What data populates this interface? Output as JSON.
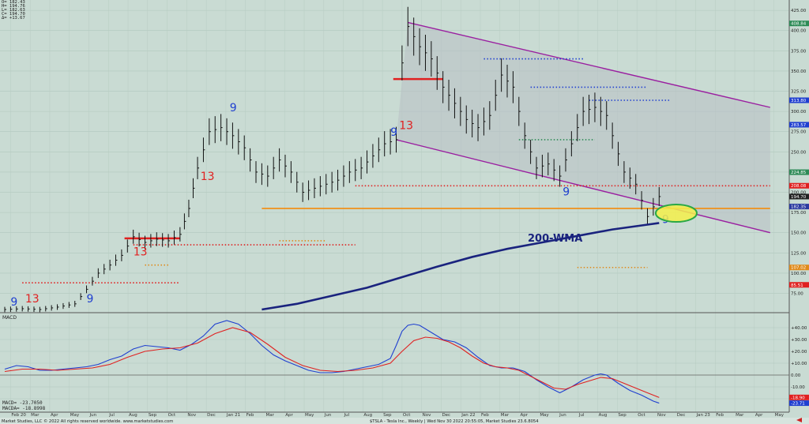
{
  "header": {
    "readout": [
      "O= 182.43",
      "H= 194.76",
      "L= 182.63",
      "C= 194.70",
      "Δ= +13.67"
    ]
  },
  "footer": {
    "left": "Market Studies, LLC © 2022 All rights reserved worldwide. www.marketstudies.com",
    "right": "$TSLA - Tesla Inc., Weekly | Wed Nov 30 2022 20:55:05, Market Studies 23.6.8054"
  },
  "annotation": {
    "wma_label": "200-WMA"
  },
  "chart_data": [
    {
      "type": "line",
      "panel": "price",
      "series_note": "weekly price bars, approximated by close",
      "ylim": [
        55,
        430
      ],
      "yticks": [
        75,
        100,
        125,
        150,
        175,
        200,
        225,
        250,
        275,
        300,
        325,
        350,
        375,
        400,
        425
      ],
      "right_labels": [
        {
          "text": "408.84",
          "value": 408.84,
          "color": "#2e8b57"
        },
        {
          "text": "313.80",
          "value": 313.8,
          "color": "#1f3fd0"
        },
        {
          "text": "283.57",
          "value": 283.57,
          "color": "#1f3fd0"
        },
        {
          "text": "224.85",
          "value": 224.85,
          "color": "#2e8b57"
        },
        {
          "text": "208.08",
          "value": 208.08,
          "color": "#e02020"
        },
        {
          "text": "194.70",
          "value": 194.7,
          "color": "#222222"
        },
        {
          "text": "182.35",
          "value": 182.35,
          "color": "#2a3aa0"
        },
        {
          "text": "107.02",
          "value": 107.02,
          "color": "#e08a1a"
        },
        {
          "text": "85.51",
          "value": 85.51,
          "color": "#e02020"
        }
      ],
      "x_labels": [
        "Feb 20",
        "Mar",
        "Apr",
        "May",
        "Jun",
        "Jul",
        "Aug",
        "Sep",
        "Oct",
        "Nov",
        "Dec",
        "Jan 21",
        "Feb",
        "Mar",
        "Apr",
        "May",
        "Jun",
        "Jul",
        "Aug",
        "Sep",
        "Oct",
        "Nov",
        "Dec",
        "Jan 22",
        "Feb",
        "Mar",
        "Apr",
        "May",
        "Jun",
        "Jul",
        "Aug",
        "Sep",
        "Oct",
        "Nov",
        "Dec",
        "Jan 23",
        "Feb",
        "Mar",
        "Apr",
        "May"
      ],
      "price": [
        {
          "t": 0,
          "v": 55
        },
        {
          "t": 3,
          "v": 56
        },
        {
          "t": 6,
          "v": 55
        },
        {
          "t": 9,
          "v": 58
        },
        {
          "t": 12,
          "v": 62
        },
        {
          "t": 14,
          "v": 80
        },
        {
          "t": 16,
          "v": 100
        },
        {
          "t": 18,
          "v": 110
        },
        {
          "t": 20,
          "v": 122
        },
        {
          "t": 22,
          "v": 145
        },
        {
          "t": 24,
          "v": 138
        },
        {
          "t": 26,
          "v": 142
        },
        {
          "t": 28,
          "v": 140
        },
        {
          "t": 30,
          "v": 148
        },
        {
          "t": 31.5,
          "v": 180
        },
        {
          "t": 33,
          "v": 230
        },
        {
          "t": 35,
          "v": 275
        },
        {
          "t": 37,
          "v": 280
        },
        {
          "t": 39,
          "v": 270
        },
        {
          "t": 41,
          "v": 255
        },
        {
          "t": 43,
          "v": 225
        },
        {
          "t": 45,
          "v": 220
        },
        {
          "t": 47,
          "v": 240
        },
        {
          "t": 49,
          "v": 225
        },
        {
          "t": 51,
          "v": 200
        },
        {
          "t": 53,
          "v": 205
        },
        {
          "t": 55,
          "v": 210
        },
        {
          "t": 57,
          "v": 215
        },
        {
          "t": 59,
          "v": 225
        },
        {
          "t": 61,
          "v": 230
        },
        {
          "t": 63,
          "v": 245
        },
        {
          "t": 65,
          "v": 260
        },
        {
          "t": 67,
          "v": 265
        },
        {
          "t": 68,
          "v": 360
        },
        {
          "t": 69,
          "v": 405
        },
        {
          "t": 71,
          "v": 380
        },
        {
          "t": 73,
          "v": 365
        },
        {
          "t": 75,
          "v": 330
        },
        {
          "t": 77,
          "v": 310
        },
        {
          "t": 79,
          "v": 290
        },
        {
          "t": 81,
          "v": 280
        },
        {
          "t": 83,
          "v": 295
        },
        {
          "t": 85,
          "v": 345
        },
        {
          "t": 87,
          "v": 330
        },
        {
          "t": 89,
          "v": 270
        },
        {
          "t": 91,
          "v": 230
        },
        {
          "t": 93,
          "v": 235
        },
        {
          "t": 95,
          "v": 220
        },
        {
          "t": 97,
          "v": 260
        },
        {
          "t": 99,
          "v": 300
        },
        {
          "t": 101,
          "v": 305
        },
        {
          "t": 103,
          "v": 295
        },
        {
          "t": 104,
          "v": 270
        },
        {
          "t": 106,
          "v": 225
        },
        {
          "t": 108,
          "v": 210
        },
        {
          "t": 110,
          "v": 170
        },
        {
          "t": 111,
          "v": 182
        },
        {
          "t": 112,
          "v": 194.7
        }
      ],
      "wma_200": [
        {
          "t": 44,
          "v": 55
        },
        {
          "t": 50,
          "v": 62
        },
        {
          "t": 56,
          "v": 72
        },
        {
          "t": 62,
          "v": 82
        },
        {
          "t": 68,
          "v": 95
        },
        {
          "t": 74,
          "v": 108
        },
        {
          "t": 80,
          "v": 120
        },
        {
          "t": 86,
          "v": 130
        },
        {
          "t": 92,
          "v": 138
        },
        {
          "t": 98,
          "v": 146
        },
        {
          "t": 104,
          "v": 154
        },
        {
          "t": 110,
          "v": 160
        },
        {
          "t": 112,
          "v": 162
        }
      ],
      "support_line": {
        "value": 180,
        "from": 44,
        "to": 131
      },
      "channel": {
        "upper": [
          {
            "t": 69,
            "v": 410
          },
          {
            "t": 131,
            "v": 305
          }
        ],
        "lower": [
          {
            "t": 67,
            "v": 265
          },
          {
            "t": 131,
            "v": 150
          }
        ]
      },
      "td_counts": [
        {
          "t": 1,
          "v": 60,
          "text": "9",
          "color": "#1f3fd0"
        },
        {
          "t": 3.5,
          "v": 64,
          "text": "13",
          "color": "#e02020"
        },
        {
          "t": 14,
          "v": 64,
          "text": "9",
          "color": "#1f3fd0"
        },
        {
          "t": 22,
          "v": 122,
          "text": "13",
          "color": "#e02020"
        },
        {
          "t": 33.5,
          "v": 215,
          "text": "13",
          "color": "#e02020"
        },
        {
          "t": 38.5,
          "v": 300,
          "text": "9",
          "color": "#1f3fd0"
        },
        {
          "t": 66,
          "v": 270,
          "text": "9",
          "color": "#1f3fd0"
        },
        {
          "t": 67.5,
          "v": 278,
          "text": "13",
          "color": "#e02020"
        },
        {
          "t": 95.5,
          "v": 196,
          "text": "9",
          "color": "#1f3fd0"
        },
        {
          "t": 112.5,
          "v": 162,
          "text": "9",
          "color": "#1f3fd0"
        }
      ]
    },
    {
      "type": "line",
      "panel": "macd",
      "title": "MACD",
      "ylim": [
        -30,
        50
      ],
      "yticks": [
        40,
        30,
        20,
        10,
        0,
        -10,
        -20
      ],
      "readout": [
        "MACD= -23.7050",
        "MACDA= -18.8998"
      ],
      "right_labels": [
        {
          "text": "-18.90",
          "value": -18.9,
          "color": "#e02020"
        },
        {
          "text": "-23.71",
          "value": -23.71,
          "color": "#1f3fd0"
        }
      ],
      "series": [
        {
          "name": "MACD",
          "color": "#1f3fd0",
          "values": [
            {
              "t": 0,
              "v": 5
            },
            {
              "t": 2,
              "v": 8
            },
            {
              "t": 4,
              "v": 7
            },
            {
              "t": 6,
              "v": 4
            },
            {
              "t": 8,
              "v": 4
            },
            {
              "t": 10,
              "v": 5
            },
            {
              "t": 12,
              "v": 6
            },
            {
              "t": 14,
              "v": 7
            },
            {
              "t": 16,
              "v": 9
            },
            {
              "t": 18,
              "v": 13
            },
            {
              "t": 20,
              "v": 16
            },
            {
              "t": 22,
              "v": 22
            },
            {
              "t": 24,
              "v": 25
            },
            {
              "t": 26,
              "v": 24
            },
            {
              "t": 28,
              "v": 23
            },
            {
              "t": 30,
              "v": 21
            },
            {
              "t": 32,
              "v": 26
            },
            {
              "t": 34,
              "v": 33
            },
            {
              "t": 36,
              "v": 43
            },
            {
              "t": 38,
              "v": 46
            },
            {
              "t": 40,
              "v": 43
            },
            {
              "t": 42,
              "v": 35
            },
            {
              "t": 44,
              "v": 25
            },
            {
              "t": 46,
              "v": 17
            },
            {
              "t": 48,
              "v": 12
            },
            {
              "t": 50,
              "v": 8
            },
            {
              "t": 52,
              "v": 4
            },
            {
              "t": 54,
              "v": 2
            },
            {
              "t": 56,
              "v": 2
            },
            {
              "t": 58,
              "v": 3
            },
            {
              "t": 60,
              "v": 5
            },
            {
              "t": 62,
              "v": 7
            },
            {
              "t": 64,
              "v": 9
            },
            {
              "t": 66,
              "v": 14
            },
            {
              "t": 67,
              "v": 25
            },
            {
              "t": 68,
              "v": 37
            },
            {
              "t": 69,
              "v": 42
            },
            {
              "t": 70,
              "v": 43
            },
            {
              "t": 71,
              "v": 42
            },
            {
              "t": 73,
              "v": 36
            },
            {
              "t": 75,
              "v": 30
            },
            {
              "t": 77,
              "v": 28
            },
            {
              "t": 79,
              "v": 23
            },
            {
              "t": 81,
              "v": 15
            },
            {
              "t": 83,
              "v": 8
            },
            {
              "t": 85,
              "v": 6
            },
            {
              "t": 87,
              "v": 6
            },
            {
              "t": 89,
              "v": 3
            },
            {
              "t": 91,
              "v": -4
            },
            {
              "t": 93,
              "v": -10
            },
            {
              "t": 95,
              "v": -15
            },
            {
              "t": 97,
              "v": -10
            },
            {
              "t": 99,
              "v": -4
            },
            {
              "t": 101,
              "v": 0
            },
            {
              "t": 102,
              "v": 1
            },
            {
              "t": 103,
              "v": 0
            },
            {
              "t": 105,
              "v": -7
            },
            {
              "t": 107,
              "v": -13
            },
            {
              "t": 109,
              "v": -17
            },
            {
              "t": 111,
              "v": -22
            },
            {
              "t": 112,
              "v": -23.7
            }
          ]
        },
        {
          "name": "MACDA",
          "color": "#e02020",
          "values": [
            {
              "t": 0,
              "v": 3
            },
            {
              "t": 3,
              "v": 5
            },
            {
              "t": 6,
              "v": 5
            },
            {
              "t": 9,
              "v": 4
            },
            {
              "t": 12,
              "v": 5
            },
            {
              "t": 15,
              "v": 6
            },
            {
              "t": 18,
              "v": 9
            },
            {
              "t": 21,
              "v": 15
            },
            {
              "t": 24,
              "v": 20
            },
            {
              "t": 27,
              "v": 22
            },
            {
              "t": 30,
              "v": 23
            },
            {
              "t": 33,
              "v": 27
            },
            {
              "t": 36,
              "v": 35
            },
            {
              "t": 39,
              "v": 40
            },
            {
              "t": 42,
              "v": 36
            },
            {
              "t": 45,
              "v": 26
            },
            {
              "t": 48,
              "v": 15
            },
            {
              "t": 51,
              "v": 8
            },
            {
              "t": 54,
              "v": 4
            },
            {
              "t": 57,
              "v": 3
            },
            {
              "t": 60,
              "v": 4
            },
            {
              "t": 63,
              "v": 6
            },
            {
              "t": 66,
              "v": 10
            },
            {
              "t": 68,
              "v": 20
            },
            {
              "t": 70,
              "v": 29
            },
            {
              "t": 72,
              "v": 32
            },
            {
              "t": 74,
              "v": 31
            },
            {
              "t": 76,
              "v": 28
            },
            {
              "t": 78,
              "v": 23
            },
            {
              "t": 80,
              "v": 16
            },
            {
              "t": 82,
              "v": 10
            },
            {
              "t": 84,
              "v": 7
            },
            {
              "t": 86,
              "v": 6
            },
            {
              "t": 88,
              "v": 4
            },
            {
              "t": 90,
              "v": -1
            },
            {
              "t": 92,
              "v": -6
            },
            {
              "t": 94,
              "v": -11
            },
            {
              "t": 96,
              "v": -12
            },
            {
              "t": 98,
              "v": -8
            },
            {
              "t": 100,
              "v": -5
            },
            {
              "t": 102,
              "v": -2
            },
            {
              "t": 104,
              "v": -3
            },
            {
              "t": 106,
              "v": -7
            },
            {
              "t": 108,
              "v": -11
            },
            {
              "t": 110,
              "v": -15
            },
            {
              "t": 112,
              "v": -18.9
            }
          ]
        }
      ]
    }
  ]
}
